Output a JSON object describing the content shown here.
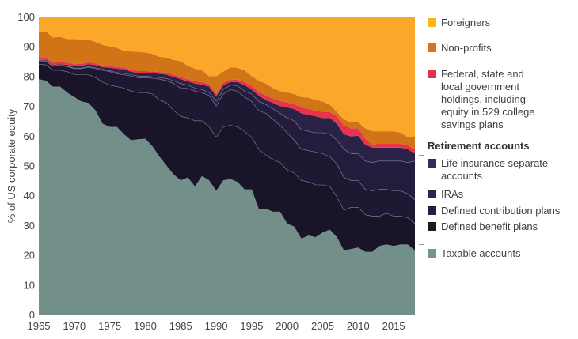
{
  "chart_data": {
    "type": "area",
    "stacked": true,
    "title": "",
    "xlabel": "",
    "ylabel": "% of US corporate equity",
    "xlim": [
      1965,
      2018
    ],
    "ylim": [
      0,
      100
    ],
    "x_ticks": [
      1965,
      1970,
      1975,
      1980,
      1985,
      1990,
      1995,
      2000,
      2005,
      2010,
      2015
    ],
    "y_ticks": [
      0,
      10,
      20,
      30,
      40,
      50,
      60,
      70,
      80,
      90,
      100
    ],
    "grid": false,
    "legend_position": "right",
    "x": [
      1965,
      1966,
      1967,
      1968,
      1969,
      1970,
      1971,
      1972,
      1973,
      1974,
      1975,
      1976,
      1977,
      1978,
      1979,
      1980,
      1981,
      1982,
      1983,
      1984,
      1985,
      1986,
      1987,
      1988,
      1989,
      1990,
      1991,
      1992,
      1993,
      1994,
      1995,
      1996,
      1997,
      1998,
      1999,
      2000,
      2001,
      2002,
      2003,
      2004,
      2005,
      2006,
      2007,
      2008,
      2009,
      2010,
      2011,
      2012,
      2013,
      2014,
      2015,
      2016,
      2017,
      2018
    ],
    "value_mode": "cumulative_top",
    "series": [
      {
        "name": "Taxable accounts",
        "color": "#738f8a",
        "values": [
          79,
          78.5,
          76.5,
          76.5,
          74.5,
          73,
          71.5,
          71,
          68.5,
          64,
          63,
          63,
          60.5,
          58.5,
          58.8,
          59,
          56.5,
          53,
          50,
          47,
          45,
          46,
          43,
          46.5,
          45,
          41.5,
          45,
          45.5,
          44.5,
          42,
          42,
          35.5,
          35.5,
          34.5,
          34.5,
          30.5,
          29.5,
          25.5,
          26.5,
          26,
          27.5,
          28.5,
          26,
          21.5,
          22,
          22.5,
          21,
          21,
          23,
          23.5,
          23,
          23.5,
          23.5,
          21.5
        ]
      },
      {
        "name": "Defined benefit plans",
        "color": "#1a1428",
        "values": [
          84,
          83.8,
          82,
          82,
          81.5,
          80.5,
          80.5,
          80.5,
          79.5,
          78,
          77,
          76.5,
          76,
          75,
          74.5,
          74.5,
          74,
          72,
          71,
          68.5,
          66.5,
          66,
          65,
          65,
          63,
          59.5,
          63,
          63.5,
          63,
          61.5,
          59.5,
          55.5,
          53.5,
          52,
          51,
          48.5,
          47.5,
          45,
          44.5,
          43.5,
          43.5,
          43,
          39.5,
          35,
          36,
          36,
          33.5,
          33,
          33,
          34,
          33,
          33,
          32.5,
          30.5
        ]
      },
      {
        "name": "Defined contribution plans",
        "color": "#1f1832",
        "values": [
          85.2,
          85,
          83.3,
          83.5,
          83.2,
          82.5,
          82.5,
          83,
          82.5,
          82,
          81.5,
          80.8,
          80.5,
          80,
          79.5,
          79.5,
          79.3,
          79,
          78.5,
          77.5,
          76,
          76,
          75,
          74.5,
          73.5,
          70,
          74,
          75.5,
          75,
          73,
          71.5,
          68.5,
          67.5,
          65.5,
          63.5,
          61,
          58.5,
          55.5,
          55,
          54.5,
          54,
          53,
          50.5,
          46,
          45,
          45,
          42,
          41.5,
          42,
          42,
          41.5,
          41.5,
          40.5,
          38.5
        ]
      },
      {
        "name": "IRAs",
        "color": "#231c3d",
        "values": [
          85.3,
          85.1,
          83.5,
          83.7,
          83.4,
          82.7,
          82.7,
          83.2,
          82.8,
          82.3,
          81.8,
          81.2,
          80.9,
          80.5,
          80,
          80,
          79.8,
          79.5,
          79.2,
          78.5,
          77.5,
          77,
          76,
          75.5,
          74.5,
          71.5,
          75.5,
          77,
          76.8,
          75,
          74,
          71.5,
          70.5,
          69,
          67.5,
          66,
          65,
          62,
          61.5,
          61,
          61,
          60.5,
          58.5,
          55.5,
          54,
          54,
          51.5,
          51,
          51.5,
          51.5,
          51.5,
          51.5,
          51,
          51.5
        ]
      },
      {
        "name": "Life insurance separate accounts",
        "color": "#2a2347",
        "values": [
          85.5,
          85.5,
          83.8,
          84,
          83.8,
          83.3,
          83.5,
          84,
          83.7,
          83,
          82.8,
          82.5,
          82.3,
          81.5,
          81,
          81,
          81,
          80.8,
          80.5,
          79.8,
          79,
          78.3,
          77.5,
          77.2,
          76.5,
          73.3,
          77,
          78,
          78,
          77,
          75.5,
          73.5,
          72,
          71,
          70,
          69.5,
          69,
          67.5,
          67,
          66.5,
          66,
          66,
          64,
          60.5,
          59.8,
          60,
          57,
          56,
          56,
          56,
          56,
          56,
          55.5,
          54
        ]
      },
      {
        "name": "Federal, state and local government holdings, including equity in 529 college savings plans",
        "color": "#e8344a",
        "values": [
          86.2,
          86.2,
          84.5,
          84.8,
          84.5,
          84,
          84.2,
          84.7,
          84.3,
          83.6,
          83.4,
          83.1,
          82.9,
          82.2,
          81.7,
          81.7,
          81.6,
          81.4,
          81.2,
          80.5,
          79.8,
          79,
          78.3,
          78,
          77.3,
          74,
          77.8,
          78.8,
          78.8,
          78,
          76.7,
          74.8,
          73.5,
          72.5,
          71.7,
          71.2,
          70.7,
          69.5,
          69,
          68.5,
          68,
          68,
          66.5,
          63.5,
          62.5,
          62.5,
          59,
          57,
          57.5,
          57.5,
          57.3,
          57.3,
          56.8,
          55.5
        ]
      },
      {
        "name": "Non-profits",
        "color": "#d07417",
        "values": [
          95,
          95,
          93,
          93.2,
          92.5,
          92.5,
          92.3,
          92.3,
          91.5,
          90.5,
          90,
          89.5,
          88.5,
          88.3,
          88.2,
          88,
          87.5,
          86.5,
          86.2,
          85.5,
          85,
          83.5,
          82.5,
          82,
          80,
          80,
          81.5,
          83,
          82.8,
          82,
          80,
          78.5,
          77.5,
          76,
          75,
          74.5,
          74,
          73,
          72.8,
          72,
          71.5,
          70.5,
          68,
          65.5,
          64.5,
          64.5,
          62.5,
          61.5,
          61.5,
          61.5,
          61.5,
          61,
          59.5,
          59.5
        ]
      },
      {
        "name": "Foreigners",
        "color": "#fba82a",
        "values": [
          100,
          100,
          100,
          100,
          100,
          100,
          100,
          100,
          100,
          100,
          100,
          100,
          100,
          100,
          100,
          100,
          100,
          100,
          100,
          100,
          100,
          100,
          100,
          100,
          100,
          100,
          100,
          100,
          100,
          100,
          100,
          100,
          100,
          100,
          100,
          100,
          100,
          100,
          100,
          100,
          100,
          100,
          100,
          100,
          100,
          100,
          100,
          100,
          100,
          100,
          100,
          100,
          100,
          100
        ]
      }
    ]
  },
  "legend": {
    "foreigners": "Foreigners",
    "nonprofits": "Non-profits",
    "government_lines": [
      "Federal, state and",
      "local government",
      "holdings, including",
      "equity in 529 college",
      "savings plans"
    ],
    "retirement_heading": "Retirement accounts",
    "life_insurance_lines": [
      "Life insurance separate",
      "accounts"
    ],
    "iras": "IRAs",
    "defined_contribution": "Defined contribution plans",
    "defined_benefit": "Defined benefit plans",
    "taxable": "Taxable accounts",
    "colors": {
      "foreigners": "#fdb515",
      "nonprofits": "#d4751a",
      "government": "#e3314a",
      "life_insurance": "#3a2d5c",
      "iras": "#2f2553",
      "defined_contribution": "#261e42",
      "defined_benefit": "#1c1a24",
      "taxable": "#7a928e"
    }
  }
}
